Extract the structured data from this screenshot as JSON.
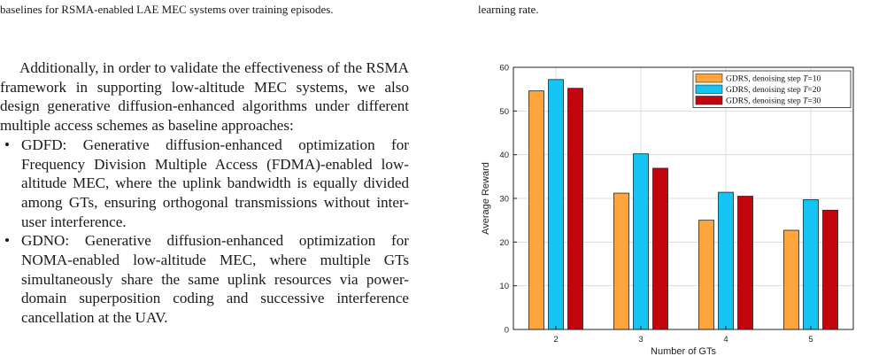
{
  "caption_left": "baselines for RSMA-enabled LAE MEC systems over training episodes.",
  "caption_right": "learning rate.",
  "paragraph": "Additionally, in order to validate the effectiveness of the RSMA framework in supporting low-altitude MEC systems, we also design generative diffusion-enhanced algorithms under different multiple access schemes as baseline approaches:",
  "bullets": [
    {
      "symbol": "•",
      "text": "GDFD: Generative diffusion-enhanced optimization for Frequency Division Multiple Access (FDMA)-enabled low-altitude MEC, where the uplink bandwidth is equally divided among GTs, ensuring orthogonal transmissions without inter-user interference."
    },
    {
      "symbol": "•",
      "text": "GDNO: Generative diffusion-enhanced optimization for NOMA-enabled low-altitude MEC, where multiple GTs simultaneously share the same uplink resources via power-domain superposition coding and successive interference cancellation at the UAV."
    }
  ],
  "chart_data": {
    "type": "bar",
    "xlabel": "Number of GTs",
    "ylabel": "Average Reward",
    "categories": [
      "2",
      "3",
      "4",
      "5"
    ],
    "ylim": [
      0,
      60
    ],
    "yticks": [
      "0",
      "10",
      "20",
      "30",
      "40",
      "50",
      "60"
    ],
    "grid": true,
    "legend_position": "top-right",
    "series": [
      {
        "name": "GDRS, denoising step T=10",
        "label_prefix": "GDRS, denoising step ",
        "label_var": "T",
        "label_value": "=10",
        "color": "#ffa53e",
        "values": [
          54.6,
          31.2,
          25.0,
          22.7
        ]
      },
      {
        "name": "GDRS, denoising step T=20",
        "label_prefix": "GDRS, denoising step ",
        "label_var": "T",
        "label_value": "=20",
        "color": "#16c4f4",
        "values": [
          57.2,
          40.2,
          31.4,
          29.7
        ]
      },
      {
        "name": "GDRS, denoising step T=30",
        "label_prefix": "GDRS, denoising step ",
        "label_var": "T",
        "label_value": "=30",
        "color": "#c2050e",
        "values": [
          55.2,
          36.9,
          30.5,
          27.3
        ]
      }
    ]
  }
}
